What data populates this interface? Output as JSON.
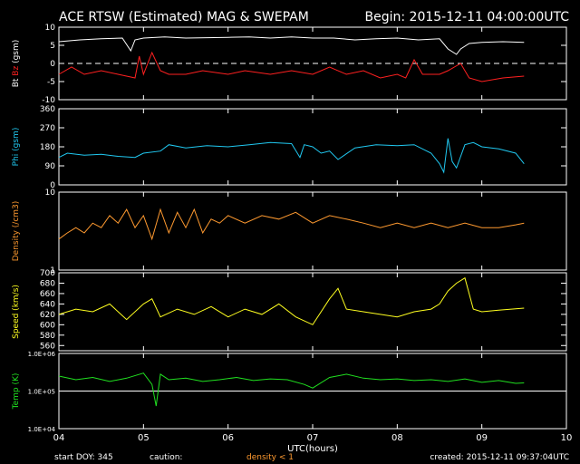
{
  "header": {
    "title": "ACE RTSW (Estimated) MAG & SWEPAM",
    "begin": "Begin: 2015-12-11 04:00:00UTC"
  },
  "footer": {
    "start_doy": "start DOY: 345",
    "caution": "caution:",
    "density_note": "density < 1",
    "created": "created: 2015-12-11 09:37:04UTC"
  },
  "colors": {
    "bt": "#ffffff",
    "bz": "#ff2020",
    "phi": "#20c8f0",
    "density": "#ff9a30",
    "speed": "#ffff20",
    "temp": "#20e020",
    "axis": "#ffffff",
    "background": "#000000"
  },
  "chart_data": [
    {
      "type": "line",
      "panel": "mag",
      "ylabel_parts": [
        "Bt",
        "Bz",
        "(gsm)"
      ],
      "ylim": [
        -10,
        10
      ],
      "yticks": [
        -10,
        -5,
        0,
        5,
        10
      ],
      "xlim": [
        4,
        10
      ],
      "reference_line": 0,
      "series": [
        {
          "name": "Bt",
          "x": [
            4.0,
            4.25,
            4.5,
            4.75,
            4.85,
            4.9,
            5.0,
            5.25,
            5.5,
            5.75,
            6.0,
            6.25,
            6.5,
            6.75,
            7.0,
            7.25,
            7.5,
            7.75,
            8.0,
            8.25,
            8.5,
            8.6,
            8.7,
            8.75,
            8.85,
            9.0,
            9.25,
            9.5
          ],
          "values": [
            6,
            6.5,
            6.8,
            7,
            3.5,
            6.5,
            7,
            7.3,
            7,
            7.1,
            7.2,
            7.3,
            7,
            7.3,
            7,
            7,
            6.5,
            6.8,
            7,
            6.5,
            6.8,
            4,
            2.5,
            4,
            5.5,
            5.8,
            6,
            5.8
          ]
        },
        {
          "name": "Bz",
          "x": [
            4.0,
            4.15,
            4.3,
            4.5,
            4.7,
            4.9,
            4.95,
            5.0,
            5.1,
            5.2,
            5.3,
            5.5,
            5.7,
            6.0,
            6.2,
            6.5,
            6.75,
            7.0,
            7.2,
            7.4,
            7.6,
            7.8,
            8.0,
            8.1,
            8.2,
            8.3,
            8.5,
            8.6,
            8.75,
            8.85,
            9.0,
            9.25,
            9.5
          ],
          "values": [
            -3,
            -1,
            -3,
            -2,
            -3,
            -4,
            2,
            -3,
            3,
            -2,
            -3,
            -3,
            -2,
            -3,
            -2,
            -3,
            -2,
            -3,
            -1,
            -3,
            -2,
            -4,
            -3,
            -4,
            1,
            -3,
            -3,
            -2,
            0,
            -4,
            -5,
            -4,
            -3.5
          ]
        }
      ]
    },
    {
      "type": "line",
      "panel": "phi",
      "ylabel": "Phi (gsm)",
      "ylim": [
        0,
        360
      ],
      "yticks": [
        0,
        90,
        180,
        270,
        360
      ],
      "xlim": [
        4,
        10
      ],
      "series": [
        {
          "name": "Phi",
          "x": [
            4.0,
            4.1,
            4.3,
            4.5,
            4.7,
            4.9,
            5.0,
            5.2,
            5.3,
            5.5,
            5.75,
            6.0,
            6.25,
            6.5,
            6.75,
            6.85,
            6.9,
            7.0,
            7.1,
            7.2,
            7.3,
            7.5,
            7.75,
            8.0,
            8.2,
            8.4,
            8.5,
            8.55,
            8.6,
            8.65,
            8.7,
            8.8,
            8.9,
            9.0,
            9.2,
            9.4,
            9.5
          ],
          "values": [
            130,
            150,
            140,
            145,
            135,
            130,
            150,
            160,
            190,
            175,
            185,
            180,
            190,
            200,
            195,
            130,
            190,
            180,
            150,
            160,
            120,
            175,
            190,
            185,
            190,
            150,
            100,
            60,
            220,
            110,
            80,
            190,
            200,
            180,
            170,
            150,
            100
          ]
        }
      ]
    },
    {
      "type": "line",
      "panel": "density",
      "ylabel": "Density (/cm3)",
      "yscale": "log",
      "ylim": [
        1,
        10
      ],
      "ytick_labels": [
        "1",
        "10"
      ],
      "xlim": [
        4,
        10
      ],
      "series": [
        {
          "name": "Density",
          "x": [
            4.0,
            4.1,
            4.2,
            4.3,
            4.4,
            4.5,
            4.6,
            4.7,
            4.8,
            4.9,
            5.0,
            5.1,
            5.2,
            5.3,
            5.4,
            5.5,
            5.6,
            5.7,
            5.8,
            5.9,
            6.0,
            6.2,
            6.4,
            6.6,
            6.8,
            7.0,
            7.2,
            7.4,
            7.6,
            7.8,
            8.0,
            8.2,
            8.4,
            8.6,
            8.8,
            9.0,
            9.2,
            9.4,
            9.5
          ],
          "values": [
            2.5,
            3.0,
            3.5,
            3.0,
            4.0,
            3.5,
            5.0,
            4.0,
            6.0,
            3.5,
            5.0,
            2.5,
            6.0,
            3.0,
            5.5,
            3.5,
            6.0,
            3.0,
            4.5,
            4.0,
            5.0,
            4.0,
            5.0,
            4.5,
            5.5,
            4.0,
            5.0,
            4.5,
            4.0,
            3.5,
            4.0,
            3.5,
            4.0,
            3.5,
            4.0,
            3.5,
            3.5,
            3.8,
            4.0
          ]
        }
      ]
    },
    {
      "type": "line",
      "panel": "speed",
      "ylabel": "Speed (km/s)",
      "ylim": [
        550,
        700
      ],
      "yticks": [
        560,
        580,
        600,
        620,
        640,
        660,
        680,
        700
      ],
      "xlim": [
        4,
        10
      ],
      "series": [
        {
          "name": "Speed",
          "x": [
            4.0,
            4.2,
            4.4,
            4.6,
            4.8,
            5.0,
            5.1,
            5.2,
            5.4,
            5.6,
            5.8,
            6.0,
            6.2,
            6.4,
            6.6,
            6.8,
            7.0,
            7.2,
            7.3,
            7.4,
            7.6,
            7.8,
            8.0,
            8.2,
            8.4,
            8.5,
            8.6,
            8.7,
            8.8,
            8.9,
            9.0,
            9.2,
            9.5
          ],
          "values": [
            620,
            630,
            625,
            640,
            610,
            640,
            650,
            615,
            630,
            620,
            635,
            615,
            630,
            620,
            640,
            615,
            600,
            650,
            670,
            630,
            625,
            620,
            615,
            625,
            630,
            640,
            665,
            680,
            690,
            630,
            625,
            628,
            632
          ]
        }
      ]
    },
    {
      "type": "line",
      "panel": "temp",
      "ylabel": "Temp (K)",
      "yscale": "log",
      "ylim": [
        10000,
        1000000
      ],
      "ytick_labels": [
        "1.0E+04",
        "1.0E+05",
        "1.0E+06"
      ],
      "reference_line": 100000,
      "xlim": [
        4,
        10
      ],
      "xlabel": "UTC(hours)",
      "xtick_labels": [
        "04",
        "05",
        "06",
        "07",
        "08",
        "09",
        "10"
      ],
      "series": [
        {
          "name": "Temp",
          "x": [
            4.0,
            4.2,
            4.4,
            4.6,
            4.8,
            5.0,
            5.1,
            5.15,
            5.2,
            5.3,
            5.5,
            5.7,
            5.9,
            6.1,
            6.3,
            6.5,
            6.7,
            6.9,
            7.0,
            7.2,
            7.4,
            7.6,
            7.8,
            8.0,
            8.2,
            8.4,
            8.6,
            8.8,
            9.0,
            9.2,
            9.4,
            9.5
          ],
          "values": [
            250000,
            200000,
            230000,
            180000,
            220000,
            300000,
            150000,
            40000,
            280000,
            200000,
            220000,
            180000,
            200000,
            230000,
            190000,
            210000,
            200000,
            150000,
            120000,
            230000,
            280000,
            220000,
            200000,
            210000,
            190000,
            200000,
            180000,
            210000,
            170000,
            190000,
            160000,
            165000
          ]
        }
      ]
    }
  ]
}
